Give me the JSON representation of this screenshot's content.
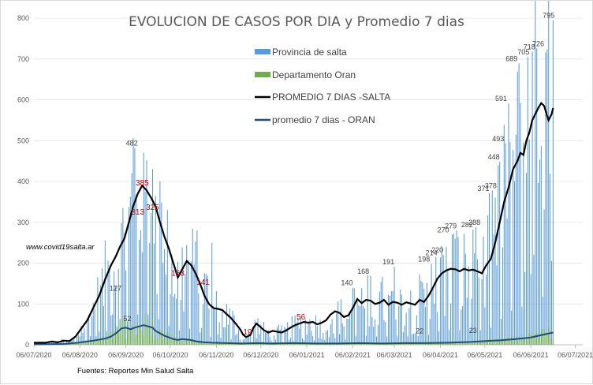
{
  "chart_data": {
    "type": "bar",
    "title": "EVOLUCION DE CASOS POR DIA y Promedio 7 dias",
    "website": "www.covid19salta.ar",
    "source": "Fuentes: Reportes Min Salud Salta",
    "ylim": [
      0,
      800
    ],
    "yticks": [
      0,
      100,
      200,
      300,
      400,
      500,
      600,
      700,
      800
    ],
    "xlim_days": [
      0,
      370
    ],
    "xticks": [
      {
        "label": "06/07/2020",
        "day": 0
      },
      {
        "label": "06/08/2020",
        "day": 31
      },
      {
        "label": "06/09/2020",
        "day": 62
      },
      {
        "label": "06/10/2020",
        "day": 92
      },
      {
        "label": "06/11/2020",
        "day": 123
      },
      {
        "label": "06/12/2020",
        "day": 153
      },
      {
        "label": "06/01/2021",
        "day": 184
      },
      {
        "label": "06/02/2021",
        "day": 215
      },
      {
        "label": "06/03/2021",
        "day": 243
      },
      {
        "label": "06/04/2021",
        "day": 274
      },
      {
        "label": "06/05/2021",
        "day": 304
      },
      {
        "label": "06/06/2021",
        "day": 335
      },
      {
        "label": "06/07/2021",
        "day": 365
      }
    ],
    "legend": [
      {
        "label": "Provincia de salta",
        "kind": "bar",
        "color": "#5b9bd5"
      },
      {
        "label": "Departamento Oran",
        "kind": "bar",
        "color": "#70ad47"
      },
      {
        "label": "PROMEDIO 7 DIAS -SALTA",
        "kind": "line",
        "color": "#000000"
      },
      {
        "label": "promedio 7 dias - ORAN",
        "kind": "line",
        "color": "#1f4e79"
      }
    ],
    "series": [
      {
        "name": "PROMEDIO 7 DIAS -SALTA",
        "points": [
          [
            0,
            5
          ],
          [
            8,
            5
          ],
          [
            12,
            8
          ],
          [
            16,
            6
          ],
          [
            20,
            10
          ],
          [
            24,
            9
          ],
          [
            28,
            20
          ],
          [
            32,
            40
          ],
          [
            36,
            60
          ],
          [
            40,
            90
          ],
          [
            44,
            120
          ],
          [
            48,
            160
          ],
          [
            52,
            195
          ],
          [
            55,
            215
          ],
          [
            58,
            240
          ],
          [
            61,
            260
          ],
          [
            64,
            300
          ],
          [
            67,
            340
          ],
          [
            70,
            370
          ],
          [
            73,
            390
          ],
          [
            76,
            378
          ],
          [
            79,
            360
          ],
          [
            82,
            340
          ],
          [
            85,
            300
          ],
          [
            88,
            265
          ],
          [
            91,
            235
          ],
          [
            94,
            200
          ],
          [
            97,
            165
          ],
          [
            100,
            185
          ],
          [
            103,
            205
          ],
          [
            106,
            195
          ],
          [
            109,
            175
          ],
          [
            112,
            150
          ],
          [
            115,
            120
          ],
          [
            118,
            100
          ],
          [
            121,
            90
          ],
          [
            124,
            88
          ],
          [
            127,
            85
          ],
          [
            130,
            75
          ],
          [
            133,
            65
          ],
          [
            136,
            52
          ],
          [
            139,
            38
          ],
          [
            141,
            25
          ],
          [
            143,
            19
          ],
          [
            146,
            24
          ],
          [
            148,
            42
          ],
          [
            150,
            52
          ],
          [
            152,
            46
          ],
          [
            155,
            36
          ],
          [
            158,
            30
          ],
          [
            161,
            34
          ],
          [
            164,
            32
          ],
          [
            167,
            30
          ],
          [
            170,
            35
          ],
          [
            173,
            42
          ],
          [
            176,
            48
          ],
          [
            179,
            52
          ],
          [
            182,
            56
          ],
          [
            185,
            54
          ],
          [
            188,
            56
          ],
          [
            191,
            50
          ],
          [
            194,
            54
          ],
          [
            197,
            60
          ],
          [
            200,
            74
          ],
          [
            203,
            82
          ],
          [
            206,
            78
          ],
          [
            209,
            68
          ],
          [
            212,
            72
          ],
          [
            215,
            90
          ],
          [
            218,
            112
          ],
          [
            221,
            102
          ],
          [
            224,
            110
          ],
          [
            227,
            108
          ],
          [
            230,
            100
          ],
          [
            233,
            103
          ],
          [
            236,
            110
          ],
          [
            239,
            98
          ],
          [
            242,
            105
          ],
          [
            245,
            103
          ],
          [
            248,
            98
          ],
          [
            251,
            104
          ],
          [
            254,
            101
          ],
          [
            257,
            98
          ],
          [
            260,
            110
          ],
          [
            263,
            105
          ],
          [
            266,
            120
          ],
          [
            269,
            140
          ],
          [
            272,
            162
          ],
          [
            275,
            175
          ],
          [
            278,
            182
          ],
          [
            281,
            186
          ],
          [
            284,
            185
          ],
          [
            287,
            180
          ],
          [
            290,
            186
          ],
          [
            293,
            182
          ],
          [
            296,
            184
          ],
          [
            299,
            180
          ],
          [
            302,
            175
          ],
          [
            305,
            195
          ],
          [
            308,
            210
          ],
          [
            311,
            250
          ],
          [
            314,
            300
          ],
          [
            317,
            350
          ],
          [
            320,
            385
          ],
          [
            323,
            430
          ],
          [
            326,
            450
          ],
          [
            328,
            470
          ],
          [
            330,
            465
          ],
          [
            332,
            500
          ],
          [
            334,
            520
          ],
          [
            336,
            550
          ],
          [
            338,
            565
          ],
          [
            340,
            580
          ],
          [
            342,
            592
          ],
          [
            344,
            585
          ],
          [
            346,
            560
          ],
          [
            347,
            550
          ],
          [
            349,
            565
          ],
          [
            350,
            580
          ]
        ]
      },
      {
        "name": "promedio 7 dias - ORAN",
        "points": [
          [
            0,
            1
          ],
          [
            20,
            2
          ],
          [
            30,
            5
          ],
          [
            40,
            10
          ],
          [
            48,
            15
          ],
          [
            52,
            20
          ],
          [
            56,
            30
          ],
          [
            59,
            40
          ],
          [
            62,
            42
          ],
          [
            65,
            38
          ],
          [
            68,
            42
          ],
          [
            71,
            45
          ],
          [
            74,
            48
          ],
          [
            77,
            45
          ],
          [
            80,
            42
          ],
          [
            82,
            34
          ],
          [
            85,
            28
          ],
          [
            88,
            22
          ],
          [
            91,
            18
          ],
          [
            94,
            14
          ],
          [
            97,
            12
          ],
          [
            100,
            14
          ],
          [
            105,
            12
          ],
          [
            110,
            8
          ],
          [
            115,
            6
          ],
          [
            120,
            5
          ],
          [
            130,
            4
          ],
          [
            140,
            3
          ],
          [
            150,
            4
          ],
          [
            160,
            3
          ],
          [
            175,
            4
          ],
          [
            190,
            3
          ],
          [
            205,
            3
          ],
          [
            220,
            4
          ],
          [
            235,
            3
          ],
          [
            250,
            4
          ],
          [
            265,
            4
          ],
          [
            280,
            5
          ],
          [
            295,
            7
          ],
          [
            305,
            9
          ],
          [
            315,
            11
          ],
          [
            325,
            14
          ],
          [
            335,
            18
          ],
          [
            345,
            26
          ],
          [
            350,
            30
          ]
        ]
      }
    ],
    "bar_peaks": [
      {
        "day": 68,
        "value": 482
      },
      {
        "day": 74,
        "value": 470
      },
      {
        "day": 80,
        "value": 430
      },
      {
        "day": 66,
        "value": 420
      },
      {
        "day": 85,
        "value": 400
      },
      {
        "day": 90,
        "value": 330
      },
      {
        "day": 110,
        "value": 280
      },
      {
        "day": 120,
        "value": 250
      },
      {
        "day": 215,
        "value": 140
      },
      {
        "day": 227,
        "value": 168
      },
      {
        "day": 243,
        "value": 191
      },
      {
        "day": 268,
        "value": 198
      },
      {
        "day": 274,
        "value": 214
      },
      {
        "day": 276,
        "value": 220
      },
      {
        "day": 282,
        "value": 270
      },
      {
        "day": 285,
        "value": 279
      },
      {
        "day": 296,
        "value": 282
      },
      {
        "day": 298,
        "value": 288
      },
      {
        "day": 307,
        "value": 371
      },
      {
        "day": 309,
        "value": 378
      },
      {
        "day": 314,
        "value": 448
      },
      {
        "day": 318,
        "value": 493
      },
      {
        "day": 320,
        "value": 591
      },
      {
        "day": 327,
        "value": 689
      },
      {
        "day": 333,
        "value": 705
      },
      {
        "day": 336,
        "value": 718
      },
      {
        "day": 339,
        "value": 726
      },
      {
        "day": 350,
        "value": 795
      }
    ],
    "data_labels": [
      {
        "text": "482",
        "day": 66,
        "value": 482,
        "color": "gray"
      },
      {
        "text": "385",
        "day": 73,
        "value": 385,
        "color": "red"
      },
      {
        "text": "313",
        "day": 70,
        "value": 313,
        "color": "red"
      },
      {
        "text": "325",
        "day": 80,
        "value": 325,
        "color": "red"
      },
      {
        "text": "127",
        "day": 55,
        "value": 127,
        "color": "gray"
      },
      {
        "text": "52",
        "day": 63,
        "value": 52,
        "color": "gray"
      },
      {
        "text": "163",
        "day": 97,
        "value": 163,
        "color": "red"
      },
      {
        "text": "141",
        "day": 114,
        "value": 141,
        "color": "red"
      },
      {
        "text": "19",
        "day": 144,
        "value": 19,
        "color": "red"
      },
      {
        "text": "56",
        "day": 180,
        "value": 56,
        "color": "red"
      },
      {
        "text": "140",
        "day": 211,
        "value": 140,
        "color": "gray"
      },
      {
        "text": "168",
        "day": 222,
        "value": 168,
        "color": "gray"
      },
      {
        "text": "191",
        "day": 239,
        "value": 191,
        "color": "gray"
      },
      {
        "text": "22",
        "day": 260,
        "value": 22,
        "color": "gray"
      },
      {
        "text": "198",
        "day": 263,
        "value": 198,
        "color": "gray"
      },
      {
        "text": "214",
        "day": 268,
        "value": 214,
        "color": "gray"
      },
      {
        "text": "220",
        "day": 272,
        "value": 220,
        "color": "gray"
      },
      {
        "text": "270",
        "day": 276,
        "value": 270,
        "color": "gray"
      },
      {
        "text": "279",
        "day": 281,
        "value": 279,
        "color": "gray"
      },
      {
        "text": "282",
        "day": 292,
        "value": 282,
        "color": "gray"
      },
      {
        "text": "288",
        "day": 297,
        "value": 288,
        "color": "gray"
      },
      {
        "text": "23",
        "day": 296,
        "value": 23,
        "color": "gray"
      },
      {
        "text": "371",
        "day": 303,
        "value": 371,
        "color": "gray"
      },
      {
        "text": "378",
        "day": 308,
        "value": 378,
        "color": "gray"
      },
      {
        "text": "448",
        "day": 310,
        "value": 448,
        "color": "gray"
      },
      {
        "text": "493",
        "day": 313,
        "value": 493,
        "color": "gray"
      },
      {
        "text": "591",
        "day": 315,
        "value": 591,
        "color": "gray"
      },
      {
        "text": "689",
        "day": 322,
        "value": 689,
        "color": "gray"
      },
      {
        "text": "705",
        "day": 330,
        "value": 705,
        "color": "gray"
      },
      {
        "text": "718",
        "day": 334,
        "value": 718,
        "color": "gray"
      },
      {
        "text": "726",
        "day": 340,
        "value": 726,
        "color": "gray"
      },
      {
        "text": "795",
        "day": 347,
        "value": 795,
        "color": "gray"
      }
    ],
    "colors": {
      "salta_bar": "#5b9bd5",
      "oran_bar": "#70ad47",
      "salta_line": "#000000",
      "oran_line": "#1f4e79",
      "label_red": "#c00000"
    }
  }
}
